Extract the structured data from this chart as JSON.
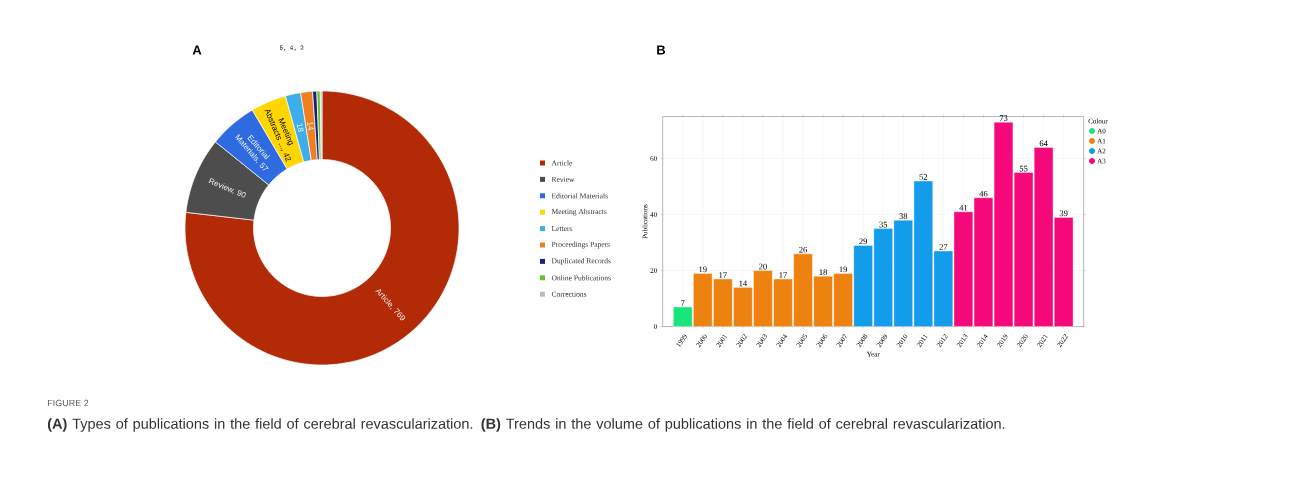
{
  "chart_data": [
    {
      "type": "donut",
      "title": "A",
      "categories": [
        "Article",
        "Review",
        "Editorial Materials",
        "Meeting Abstracts",
        "Letters",
        "Proceedings Papers",
        "Duplicated Records",
        "Online Publications",
        "Corrections"
      ],
      "values": [
        769,
        90,
        57,
        42,
        18,
        14,
        5,
        4,
        2
      ],
      "colors": [
        "#b32a06",
        "#4d4d4d",
        "#2e6be0",
        "#ffd600",
        "#3daee9",
        "#f07f1f",
        "#1a237e",
        "#6ac43a",
        "#bdbdbd"
      ],
      "value_labels": [
        "Article, 769",
        "Review, 90",
        "Editorial Materials, 57",
        "Meeting Abstracts ..., 42",
        "18",
        "14",
        null,
        null,
        null
      ],
      "annotations": [
        "5, 4, 2"
      ],
      "legend": "right"
    },
    {
      "type": "bar",
      "title": "B",
      "categories": [
        "1999",
        "2000",
        "2001",
        "2002",
        "2003",
        "2004",
        "2005",
        "2006",
        "2007",
        "2008",
        "2009",
        "2010",
        "2011",
        "2012",
        "2013",
        "2014",
        "2019",
        "2020",
        "2021",
        "2022"
      ],
      "series": [
        {
          "name": "A0",
          "color": "#19e57a",
          "values": [
            7,
            null,
            null,
            null,
            null,
            null,
            null,
            null,
            null,
            null,
            null,
            null,
            null,
            null,
            null,
            null,
            null,
            null,
            null,
            null
          ]
        },
        {
          "name": "A1",
          "color": "#ee8210",
          "values": [
            null,
            19,
            17,
            14,
            20,
            17,
            26,
            18,
            19,
            null,
            null,
            null,
            null,
            null,
            null,
            null,
            null,
            null,
            null,
            null
          ]
        },
        {
          "name": "A2",
          "color": "#139cea",
          "values": [
            null,
            null,
            null,
            null,
            null,
            null,
            null,
            null,
            null,
            29,
            35,
            38,
            52,
            27,
            null,
            null,
            null,
            null,
            null,
            null
          ]
        },
        {
          "name": "A3",
          "color": "#f5087a",
          "values": [
            null,
            null,
            null,
            null,
            null,
            null,
            null,
            null,
            null,
            null,
            null,
            null,
            null,
            null,
            41,
            46,
            73,
            55,
            64,
            39
          ]
        }
      ],
      "xlabel": "Year",
      "ylabel": "Publications",
      "legend_title": "Colour",
      "ylim": [
        0,
        75
      ],
      "yticks": [
        0,
        20,
        40,
        60
      ],
      "grid": true,
      "legend": "right",
      "data_labels": true,
      "annotations": [
        "FIGURE 2",
        "**(A)** Types of publications in the field of cerebral revascularization. **(B)** Trends in the volume of publications in the field of cerebral revascularization."
      ]
    }
  ]
}
